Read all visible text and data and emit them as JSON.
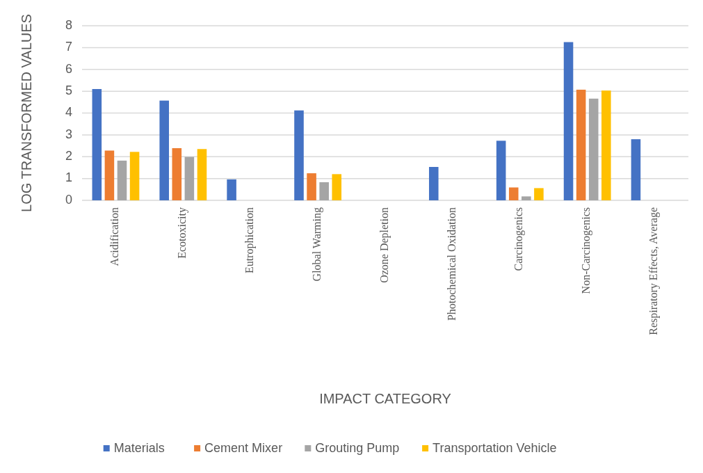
{
  "chart_data": {
    "type": "bar",
    "xlabel": "IMPACT CATEGORY",
    "ylabel": "LOG TRANSFORMED VALUES",
    "categories": [
      "Acidification",
      "Ecotoxicity",
      "Eutrophication",
      "Global Warming",
      "Ozone Depletion",
      "Photochemical Oxidation",
      "Carcinogenics",
      "Non-Carcinogenics",
      "Respiratory Effects, Average"
    ],
    "series": [
      {
        "name": "Materials",
        "color": "#4472c4",
        "values": [
          5.1,
          4.57,
          0.96,
          4.12,
          0,
          1.53,
          2.73,
          7.25,
          2.8
        ]
      },
      {
        "name": "Cement Mixer",
        "color": "#ed7d31",
        "values": [
          2.28,
          2.39,
          0,
          1.24,
          0,
          0,
          0.59,
          5.07,
          0
        ]
      },
      {
        "name": "Grouting Pump",
        "color": "#a5a5a5",
        "values": [
          1.82,
          1.99,
          0,
          0.83,
          0,
          0,
          0.18,
          4.66,
          0
        ]
      },
      {
        "name": "Transportation Vehicle",
        "color": "#ffc000",
        "values": [
          2.22,
          2.35,
          0,
          1.2,
          0,
          0,
          0.56,
          5.03,
          0
        ]
      }
    ],
    "ylim": [
      0,
      8
    ],
    "yticks": [
      0,
      1,
      2,
      3,
      4,
      5,
      6,
      7,
      8
    ],
    "grid": "y",
    "legend": "bottom"
  }
}
